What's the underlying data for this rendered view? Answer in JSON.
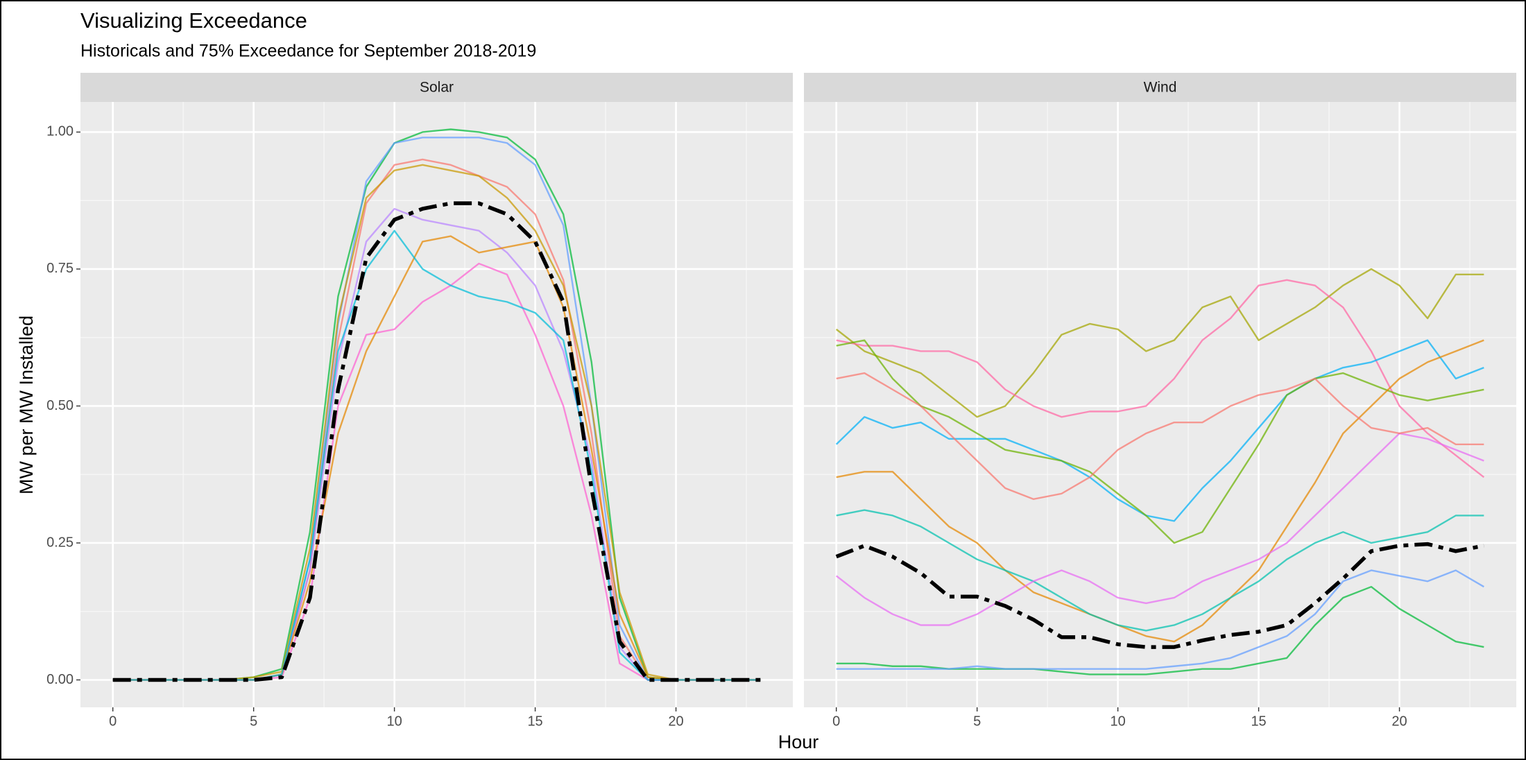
{
  "title": "Visualizing Exceedance",
  "subtitle": "Historicals and 75% Exceedance for September 2018-2019",
  "xlabel": "Hour",
  "ylabel": "MW per MW Installed",
  "chart_data": [
    {
      "type": "line",
      "facet": "Solar",
      "x": [
        0,
        1,
        2,
        3,
        4,
        5,
        6,
        7,
        8,
        9,
        10,
        11,
        12,
        13,
        14,
        15,
        16,
        17,
        18,
        19,
        20,
        21,
        22,
        23
      ],
      "xlim": [
        -1.15,
        24.15
      ],
      "xticks": [
        0,
        5,
        10,
        15,
        20
      ],
      "ylim": [
        -0.05,
        1.055
      ],
      "yticks": [
        {
          "value": 0,
          "label": "0.00"
        },
        {
          "value": 0.25,
          "label": "0.25"
        },
        {
          "value": 0.5,
          "label": "0.50"
        },
        {
          "value": 0.75,
          "label": "0.75"
        },
        {
          "value": 1,
          "label": "1.00"
        }
      ],
      "grid": true,
      "series": [
        {
          "color": "#00BA38",
          "values": [
            0,
            0,
            0,
            0,
            0,
            0.005,
            0.02,
            0.27,
            0.7,
            0.9,
            0.98,
            1.0,
            1.005,
            1.0,
            0.99,
            0.95,
            0.85,
            0.58,
            0.15,
            0.005,
            0,
            0,
            0,
            0
          ]
        },
        {
          "color": "#619CFF",
          "values": [
            0,
            0,
            0,
            0,
            0,
            0,
            0.01,
            0.22,
            0.65,
            0.91,
            0.98,
            0.99,
            0.99,
            0.99,
            0.98,
            0.94,
            0.83,
            0.5,
            0.1,
            0,
            0,
            0,
            0,
            0
          ]
        },
        {
          "color": "#F8766D",
          "values": [
            0,
            0,
            0,
            0,
            0,
            0,
            0.01,
            0.2,
            0.62,
            0.87,
            0.94,
            0.95,
            0.94,
            0.92,
            0.9,
            0.85,
            0.73,
            0.45,
            0.08,
            0,
            0,
            0,
            0,
            0
          ]
        },
        {
          "color": "#C99800",
          "values": [
            0,
            0,
            0,
            0,
            0,
            0.005,
            0.015,
            0.24,
            0.66,
            0.88,
            0.93,
            0.94,
            0.93,
            0.92,
            0.88,
            0.82,
            0.72,
            0.5,
            0.16,
            0.01,
            0,
            0,
            0,
            0
          ]
        },
        {
          "color": "#B983FF",
          "values": [
            0,
            0,
            0,
            0,
            0,
            0,
            0.01,
            0.2,
            0.58,
            0.8,
            0.86,
            0.84,
            0.83,
            0.82,
            0.78,
            0.72,
            0.6,
            0.4,
            0.06,
            0,
            0,
            0,
            0,
            0
          ]
        },
        {
          "color": "#FD61D1",
          "values": [
            0,
            0,
            0,
            0,
            0,
            0,
            0.005,
            0.15,
            0.5,
            0.63,
            0.64,
            0.69,
            0.72,
            0.76,
            0.74,
            0.63,
            0.5,
            0.3,
            0.03,
            0,
            0,
            0,
            0,
            0
          ]
        },
        {
          "color": "#E58700",
          "values": [
            0,
            0,
            0,
            0,
            0,
            0,
            0.01,
            0.18,
            0.45,
            0.6,
            0.7,
            0.8,
            0.81,
            0.78,
            0.79,
            0.8,
            0.68,
            0.42,
            0.12,
            0.005,
            0,
            0,
            0,
            0
          ]
        },
        {
          "color": "#00BCD8",
          "values": [
            0,
            0,
            0,
            0,
            0,
            0,
            0.01,
            0.22,
            0.6,
            0.75,
            0.82,
            0.75,
            0.72,
            0.7,
            0.69,
            0.67,
            0.62,
            0.38,
            0.05,
            0,
            0,
            0,
            0,
            0
          ]
        },
        {
          "color": "#000000",
          "dashed": true,
          "values": [
            0,
            0,
            0,
            0,
            0,
            0,
            0.005,
            0.15,
            0.53,
            0.77,
            0.84,
            0.86,
            0.87,
            0.87,
            0.85,
            0.8,
            0.69,
            0.35,
            0.07,
            0,
            0,
            0,
            0,
            0
          ]
        }
      ]
    },
    {
      "type": "line",
      "facet": "Wind",
      "x": [
        0,
        1,
        2,
        3,
        4,
        5,
        6,
        7,
        8,
        9,
        10,
        11,
        12,
        13,
        14,
        15,
        16,
        17,
        18,
        19,
        20,
        21,
        22,
        23
      ],
      "xlim": [
        -1.15,
        24.15
      ],
      "xticks": [
        0,
        5,
        10,
        15,
        20
      ],
      "ylim": [
        -0.05,
        1.055
      ],
      "yticks": [
        {
          "value": 0,
          "label": "0.00"
        },
        {
          "value": 0.25,
          "label": "0.25"
        },
        {
          "value": 0.5,
          "label": "0.50"
        },
        {
          "value": 0.75,
          "label": "0.75"
        },
        {
          "value": 1,
          "label": "1.00"
        }
      ],
      "grid": true,
      "series": [
        {
          "color": "#A3A500",
          "values": [
            0.64,
            0.6,
            0.58,
            0.56,
            0.52,
            0.48,
            0.5,
            0.56,
            0.63,
            0.65,
            0.64,
            0.6,
            0.62,
            0.68,
            0.7,
            0.62,
            0.65,
            0.68,
            0.72,
            0.75,
            0.72,
            0.66,
            0.74,
            0.74
          ]
        },
        {
          "color": "#FF67A4",
          "values": [
            0.62,
            0.61,
            0.61,
            0.6,
            0.6,
            0.58,
            0.53,
            0.5,
            0.48,
            0.49,
            0.49,
            0.5,
            0.55,
            0.62,
            0.66,
            0.72,
            0.73,
            0.72,
            0.68,
            0.6,
            0.5,
            0.45,
            0.41,
            0.37
          ]
        },
        {
          "color": "#00B0F6",
          "values": [
            0.43,
            0.48,
            0.46,
            0.47,
            0.44,
            0.44,
            0.44,
            0.42,
            0.4,
            0.37,
            0.33,
            0.3,
            0.29,
            0.35,
            0.4,
            0.46,
            0.52,
            0.55,
            0.57,
            0.58,
            0.6,
            0.62,
            0.55,
            0.57
          ]
        },
        {
          "color": "#6BB100",
          "values": [
            0.61,
            0.62,
            0.55,
            0.5,
            0.48,
            0.45,
            0.42,
            0.41,
            0.4,
            0.38,
            0.34,
            0.3,
            0.25,
            0.27,
            0.35,
            0.43,
            0.52,
            0.55,
            0.56,
            0.54,
            0.52,
            0.51,
            0.52,
            0.53
          ]
        },
        {
          "color": "#E58700",
          "values": [
            0.37,
            0.38,
            0.38,
            0.33,
            0.28,
            0.25,
            0.2,
            0.16,
            0.14,
            0.12,
            0.1,
            0.08,
            0.07,
            0.1,
            0.15,
            0.2,
            0.28,
            0.36,
            0.45,
            0.5,
            0.55,
            0.58,
            0.6,
            0.62
          ]
        },
        {
          "color": "#00C0AF",
          "values": [
            0.3,
            0.31,
            0.3,
            0.28,
            0.25,
            0.22,
            0.2,
            0.18,
            0.15,
            0.12,
            0.1,
            0.09,
            0.1,
            0.12,
            0.15,
            0.18,
            0.22,
            0.25,
            0.27,
            0.25,
            0.26,
            0.27,
            0.3,
            0.3
          ]
        },
        {
          "color": "#E76BF3",
          "values": [
            0.19,
            0.15,
            0.12,
            0.1,
            0.1,
            0.12,
            0.15,
            0.18,
            0.2,
            0.18,
            0.15,
            0.14,
            0.15,
            0.18,
            0.2,
            0.22,
            0.25,
            0.3,
            0.35,
            0.4,
            0.45,
            0.44,
            0.42,
            0.4
          ]
        },
        {
          "color": "#00BA38",
          "values": [
            0.03,
            0.03,
            0.025,
            0.025,
            0.02,
            0.02,
            0.02,
            0.02,
            0.015,
            0.01,
            0.01,
            0.01,
            0.015,
            0.02,
            0.02,
            0.03,
            0.04,
            0.1,
            0.15,
            0.17,
            0.13,
            0.1,
            0.07,
            0.06
          ]
        },
        {
          "color": "#619CFF",
          "values": [
            0.02,
            0.02,
            0.02,
            0.02,
            0.02,
            0.025,
            0.02,
            0.02,
            0.02,
            0.02,
            0.02,
            0.02,
            0.025,
            0.03,
            0.04,
            0.06,
            0.08,
            0.12,
            0.18,
            0.2,
            0.19,
            0.18,
            0.2,
            0.17
          ]
        },
        {
          "color": "#F8766D",
          "values": [
            0.55,
            0.56,
            0.53,
            0.5,
            0.45,
            0.4,
            0.35,
            0.33,
            0.34,
            0.37,
            0.42,
            0.45,
            0.47,
            0.47,
            0.5,
            0.52,
            0.53,
            0.55,
            0.5,
            0.46,
            0.45,
            0.46,
            0.43,
            0.43
          ]
        },
        {
          "color": "#000000",
          "dashed": true,
          "values": [
            0.225,
            0.245,
            0.225,
            0.195,
            0.152,
            0.152,
            0.135,
            0.11,
            0.078,
            0.078,
            0.065,
            0.06,
            0.06,
            0.072,
            0.082,
            0.088,
            0.1,
            0.14,
            0.185,
            0.235,
            0.245,
            0.248,
            0.235,
            0.245
          ]
        }
      ]
    }
  ]
}
